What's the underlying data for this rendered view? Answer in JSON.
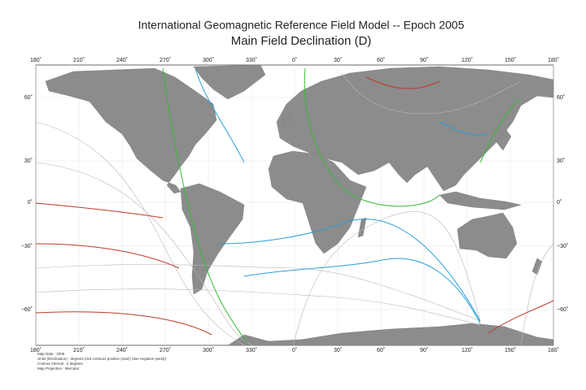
{
  "header": {
    "title": "International Geomagnetic Reference Field Model --  Epoch 2005",
    "subtitle": "Main Field Declination (D)"
  },
  "map": {
    "longitude_labels": [
      "180˚",
      "210˚",
      "240˚",
      "270˚",
      "300˚",
      "330˚",
      "0˚",
      "30˚",
      "60˚",
      "90˚",
      "120˚",
      "150˚",
      "180˚"
    ],
    "latitude_labels": [
      "60˚",
      "30˚",
      "0˚",
      "−30˚",
      "−60˚"
    ]
  },
  "notes": [
    "Map Date : 2005",
    "Units (Declination) : degrees (red contours positive (east); blue negative (west))",
    "Contour Interval : 2 degrees",
    "Map Projection : Mercator"
  ]
}
